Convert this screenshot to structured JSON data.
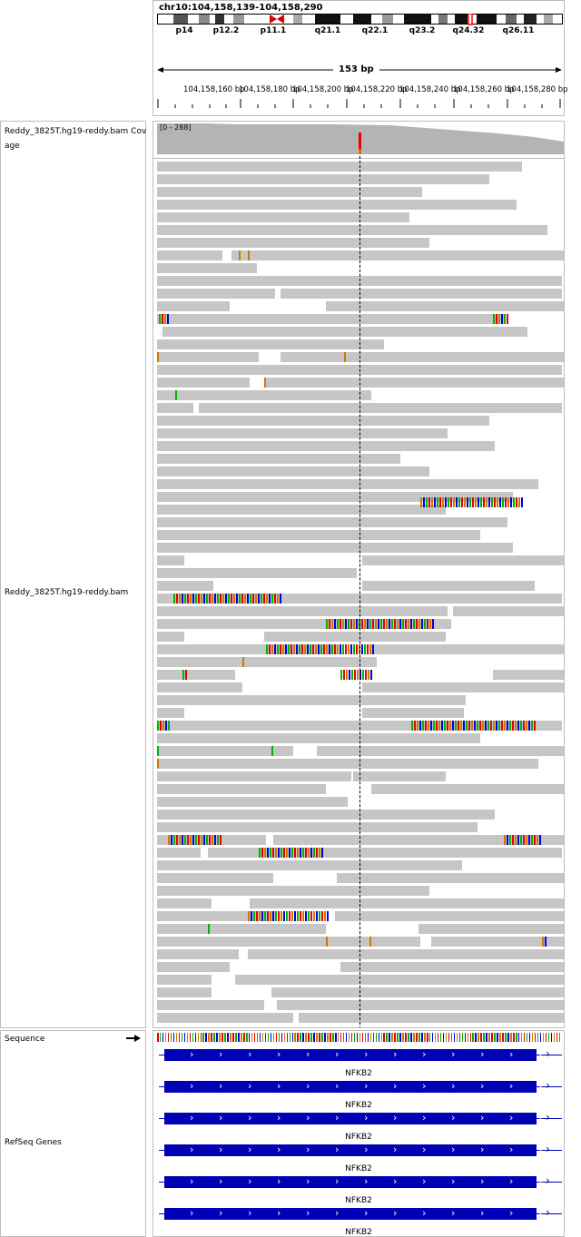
{
  "header": {
    "locus": "chr10:104,158,139-104,158,290",
    "bp_label": "153 bp",
    "cytobands": [
      "p14",
      "p12.2",
      "p11.1",
      "q21.1",
      "q22.1",
      "q23.2",
      "q24.32",
      "q26.11"
    ],
    "ruler_ticks": [
      "104,158,160 bp",
      "104,158,180 bp",
      "104,158,200 bp",
      "104,158,220 bp",
      "104,158,240 bp",
      "104,158,260 bp",
      "104,158,280 bp"
    ]
  },
  "tracks": {
    "coverage_label": "Reddy_3825T.hg19-reddy.bam Coverage",
    "coverage_label_line1": "Reddy_3825T.hg19-reddy.bam Cov",
    "coverage_label_line2": "age",
    "coverage_range": "[0 - 288]",
    "alignment_label": "Reddy_3825T.hg19-reddy.bam",
    "sequence_label": "Sequence",
    "refseq_label": "RefSeq Genes",
    "gene_name": "NFKB2",
    "gene_labels": [
      "NFKB2",
      "NFKB2",
      "NFKB2",
      "NFKB2",
      "NFKB2",
      "NFKB2"
    ]
  },
  "colors": {
    "read": "#c6c6c6",
    "gene": "#0000b4",
    "base_A": "#00b400",
    "base_C": "#0000e6",
    "base_G": "#d27800",
    "base_T": "#e60000",
    "coverage": "#b4b4b4",
    "cytoband_highlight": "#ff0000"
  },
  "icons": {
    "sequence_strand": "right-arrow-icon"
  }
}
